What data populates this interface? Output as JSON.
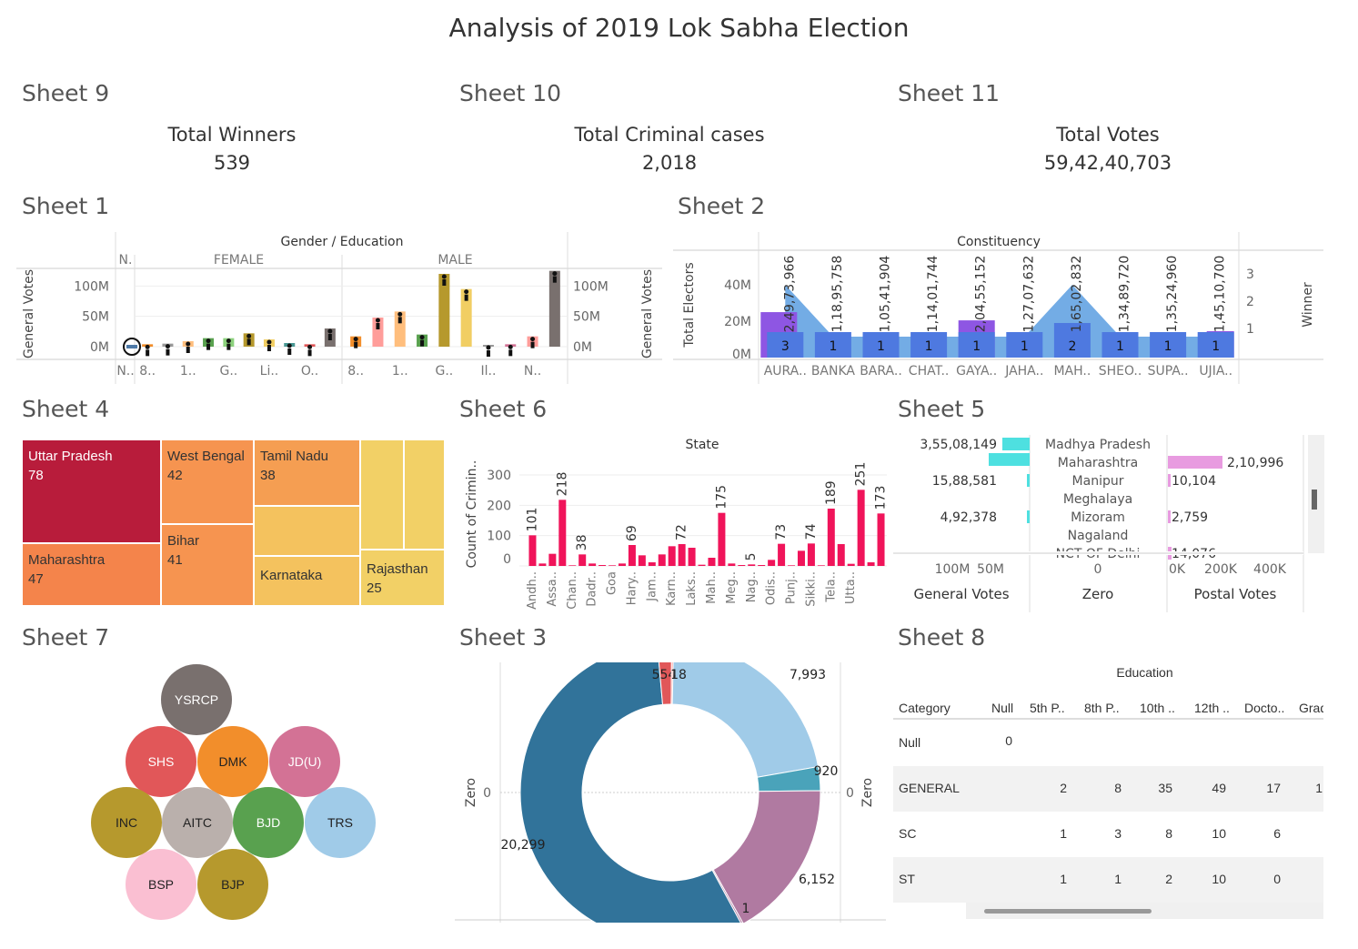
{
  "dashboard": {
    "title": "Analysis of 2019 Lok Sabha Election"
  },
  "kpis": [
    {
      "sheet": "Sheet 9",
      "label": "Total Winners",
      "value": "539"
    },
    {
      "sheet": "Sheet 10",
      "label": "Total Criminal cases",
      "value": "2,018"
    },
    {
      "sheet": "Sheet 11",
      "label": "Total Votes",
      "value": "59,42,40,703"
    }
  ],
  "sheet_titles": {
    "s1": "Sheet 1",
    "s2": "Sheet 2",
    "s4": "Sheet 4",
    "s6": "Sheet 6",
    "s5": "Sheet 5",
    "s7": "Sheet 7",
    "s3": "Sheet 3",
    "s8": "Sheet 8"
  },
  "chart_data": [
    {
      "id": "sheet1",
      "type": "bar",
      "title": "Gender / Education",
      "ylabel": "General Votes",
      "ylim": [
        0,
        130000000
      ],
      "y_ticks": [
        "0M",
        "50M",
        "100M"
      ],
      "groups": [
        {
          "name": "N.",
          "categories": [
            "N.."
          ],
          "values": [
            2000000
          ],
          "colors": [
            "#4e79a7"
          ]
        },
        {
          "name": "FEMALE",
          "categories": [
            "8..",
            "",
            "1..",
            "",
            "G..",
            "",
            "Li..",
            "",
            "O..",
            ""
          ],
          "values": [
            4000000,
            5000000,
            9000000,
            14000000,
            14000000,
            22000000,
            12000000,
            6000000,
            4000000,
            30000000
          ],
          "colors": [
            "#f28e2b",
            "#999",
            "#ffbe7d",
            "#59a14f",
            "#8cd17d",
            "#b6992d",
            "#f1ce63",
            "#499894",
            "#e15759",
            "#79706e"
          ]
        },
        {
          "name": "MALE",
          "categories": [
            "8..",
            "",
            "1..",
            "",
            "G..",
            "",
            "Il..",
            "",
            "N..",
            ""
          ],
          "values": [
            17000000,
            48000000,
            58000000,
            20000000,
            120000000,
            95000000,
            3000000,
            4000000,
            17000000,
            125000000
          ],
          "colors": [
            "#f28e2b",
            "#ff9d9a",
            "#ffbe7d",
            "#59a14f",
            "#b6992d",
            "#f1ce63",
            "#999",
            "#d37295",
            "#ff9d9a",
            "#79706e"
          ]
        }
      ],
      "right_ticks": [
        "0M",
        "50M",
        "100M"
      ],
      "right_label": "General Votes"
    },
    {
      "id": "sheet2",
      "type": "bar",
      "title": "Constituency",
      "ylabel": "Total Electors",
      "y2label": "Winner",
      "y_ticks": [
        "0M",
        "20M",
        "40M"
      ],
      "y2_ticks": [
        "1",
        "2",
        "3"
      ],
      "categories": [
        "AURA..",
        "BANKA",
        "BARA..",
        "CHAT..",
        "GAYA..",
        "JAHA..",
        "MAH..",
        "SHEO..",
        "SUPA..",
        "UJIA.."
      ],
      "values": [
        24973966,
        11895758,
        10541904,
        11401744,
        20455152,
        12707632,
        16502832,
        13489720,
        13524960,
        14510700
      ],
      "labels": [
        "2,49,73,966",
        "1,18,95,758",
        "1,05,41,904",
        "1,14,01,744",
        "2,04,55,152",
        "1,27,07,632",
        "1,65,02,832",
        "1,34,89,720",
        "1,35,24,960",
        "1,45,10,700"
      ],
      "winner": [
        3,
        1,
        1,
        1,
        1,
        1,
        2,
        1,
        1,
        1
      ],
      "area_values": [
        40000000,
        11500000,
        11500000,
        11500000,
        11500000,
        11500000,
        40000000,
        11500000,
        11500000,
        11500000
      ]
    },
    {
      "id": "sheet4",
      "type": "heatmap",
      "cells": [
        {
          "label": "Uttar Pradesh",
          "value": "78",
          "color": "#b81c3b"
        },
        {
          "label": "Maharashtra",
          "value": "47",
          "color": "#f4844b"
        },
        {
          "label": "West Bengal",
          "value": "42",
          "color": "#f69450"
        },
        {
          "label": "Bihar",
          "value": "41",
          "color": "#f69450"
        },
        {
          "label": "Tamil Nadu",
          "value": "38",
          "color": "#f59e52"
        },
        {
          "label": "Karnataka",
          "value": "",
          "color": "#f4c25e"
        },
        {
          "label": "Rajasthan",
          "value": "25",
          "color": "#f2d066"
        }
      ]
    },
    {
      "id": "sheet6",
      "type": "bar",
      "title": "State",
      "ylabel": "Count of Crimin..",
      "ylim": [
        0,
        330
      ],
      "y_ticks": [
        "0",
        "100",
        "200",
        "300"
      ],
      "categories": [
        "Andh..",
        "",
        "Assa..",
        "",
        "Chan..",
        "",
        "Dadr..",
        "",
        "Goa",
        "",
        "Hary..",
        "",
        "Jam..",
        "",
        "Karn..",
        "",
        "Laks..",
        "",
        "Mah..",
        "",
        "Meg..",
        "",
        "Nag..",
        "",
        "Odis..",
        "",
        "Punj..",
        "",
        "Sikki..",
        "",
        "Tela..",
        "",
        "Utta..",
        ""
      ],
      "values": [
        101,
        8,
        40,
        218,
        2,
        38,
        8,
        3,
        2,
        8,
        69,
        35,
        12,
        38,
        65,
        72,
        60,
        4,
        27,
        175,
        8,
        3,
        5,
        3,
        20,
        73,
        2,
        50,
        74,
        2,
        189,
        72,
        7,
        251,
        12,
        173
      ],
      "labels": [
        "101",
        "",
        "",
        "218",
        "",
        "38",
        "",
        "",
        "",
        "",
        "69",
        "",
        "",
        "",
        "",
        "72",
        "",
        "",
        "",
        "175",
        "",
        "",
        "5",
        "",
        "",
        "73",
        "",
        "",
        "74",
        "",
        "189",
        "",
        "",
        "251",
        "",
        "173"
      ]
    },
    {
      "id": "sheet5",
      "type": "bar",
      "states": [
        "Madhya Pradesh",
        "Maharashtra",
        "Manipur",
        "Meghalaya",
        "Mizoram",
        "Nagaland",
        "NCT OF Delhi"
      ],
      "general_votes": [
        35508149,
        null,
        1588581,
        null,
        492378,
        null,
        null
      ],
      "general_labels": [
        "3,55,08,149",
        "",
        "15,88,581",
        "",
        "4,92,378",
        "",
        ""
      ],
      "postal_votes": [
        null,
        210996,
        10104,
        null,
        2759,
        null,
        14076
      ],
      "postal_labels": [
        "",
        "2,10,996",
        "10,104",
        "",
        "2,759",
        "",
        "14,076"
      ],
      "columns": [
        "General Votes",
        "Zero",
        "Postal Votes"
      ],
      "general_ticks": [
        "100M",
        "50M"
      ],
      "zero_ticks": [
        "0"
      ],
      "postal_ticks": [
        "0K",
        "200K",
        "400K"
      ]
    },
    {
      "id": "sheet7",
      "type": "scatter",
      "bubbles": [
        "YSRCP",
        "SHS",
        "DMK",
        "JD(U)",
        "INC",
        "AITC",
        "BJD",
        "TRS",
        "BSP",
        "BJP"
      ]
    },
    {
      "id": "sheet3",
      "type": "pie",
      "ylabel": "Zero",
      "y_tick": "0",
      "slices": [
        {
          "label": "7,993",
          "value": 7993,
          "color": "#a0cbe8"
        },
        {
          "label": "920",
          "value": 920,
          "color": "#4aa3ba"
        },
        {
          "label": "6,152",
          "value": 6152,
          "color": "#b07aa1"
        },
        {
          "label": "1",
          "value": 1,
          "color": "#b07aa1"
        },
        {
          "label": "20,299",
          "value": 20299,
          "color": "#31739a"
        },
        {
          "label": "554",
          "value": 554,
          "color": "#e15759"
        },
        {
          "label": "18",
          "value": 18,
          "color": "#ff9d9a"
        }
      ]
    },
    {
      "id": "sheet8",
      "type": "table",
      "title": "Education",
      "row_header": "Category",
      "columns": [
        "Null",
        "5th P..",
        "8th P..",
        "10th ..",
        "12th ..",
        "Docto..",
        "Grad"
      ],
      "rows": [
        {
          "label": "Null",
          "values": [
            "0",
            "",
            "",
            "",
            "",
            "",
            ""
          ]
        },
        {
          "label": "GENERAL",
          "values": [
            "",
            "2",
            "8",
            "35",
            "49",
            "17",
            "1"
          ]
        },
        {
          "label": "SC",
          "values": [
            "",
            "1",
            "3",
            "8",
            "10",
            "6",
            ""
          ]
        },
        {
          "label": "ST",
          "values": [
            "",
            "1",
            "1",
            "2",
            "10",
            "0",
            ""
          ]
        }
      ]
    }
  ]
}
